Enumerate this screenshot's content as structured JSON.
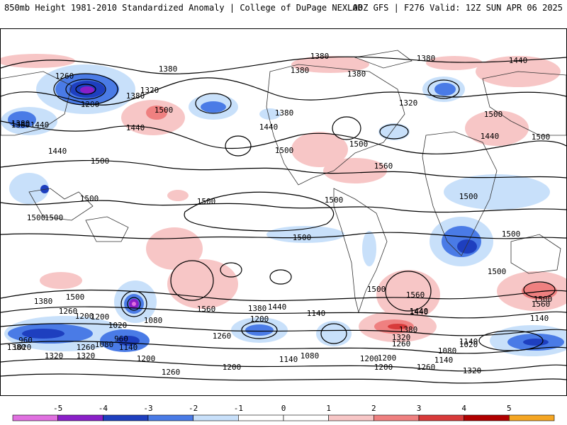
{
  "header": {
    "title_left": "850mb Height 1981-2010 Standardized Anomaly | College of DuPage NEXLAB",
    "title_right": "00Z GFS | F276 Valid: 12Z SUN APR 06 2025"
  },
  "map": {
    "contour_labels": [
      "1380",
      "1380",
      "1380",
      "1380",
      "1380",
      "1380",
      "1440",
      "1260",
      "1200",
      "1320",
      "1380",
      "1500",
      "1440",
      "1320",
      "1380",
      "1440",
      "1380",
      "1440",
      "1500",
      "1440",
      "1500",
      "1500",
      "1500",
      "1440",
      "1500",
      "1560",
      "1500",
      "1500",
      "1500",
      "1500",
      "1500",
      "1500",
      "1500",
      "1500",
      "1500",
      "1440",
      "1320",
      "1500",
      "1560",
      "1560",
      "1500",
      "1560",
      "1380",
      "1500",
      "1440",
      "1380",
      "1260",
      "1200",
      "1020",
      "960",
      "1080",
      "1140",
      "1080",
      "1260",
      "1200",
      "1020",
      "960",
      "1320",
      "1200",
      "1380",
      "1440",
      "1140",
      "1200",
      "1260",
      "1140",
      "1080",
      "1200",
      "1380",
      "1320",
      "1260",
      "1080",
      "1140",
      "1020",
      "1140",
      "1320",
      "1200",
      "1140",
      "1260",
      "1200",
      "1260",
      "1200"
    ],
    "colors": {
      "neg5": "#e070e0",
      "neg4": "#8a1fc8",
      "neg3": "#1e3fbf",
      "neg2": "#4a7be6",
      "neg1": "#c8e0fa",
      "zero": "#ffffff",
      "pos1": "#f7c6c6",
      "pos2": "#ef8080",
      "pos3": "#d83a3a",
      "pos4": "#b00000",
      "pos5": "#f5a623"
    }
  },
  "colorbar": {
    "ticks": [
      "-5",
      "-4",
      "-3",
      "-2",
      "-1",
      "0",
      "1",
      "2",
      "3",
      "4",
      "5"
    ]
  }
}
